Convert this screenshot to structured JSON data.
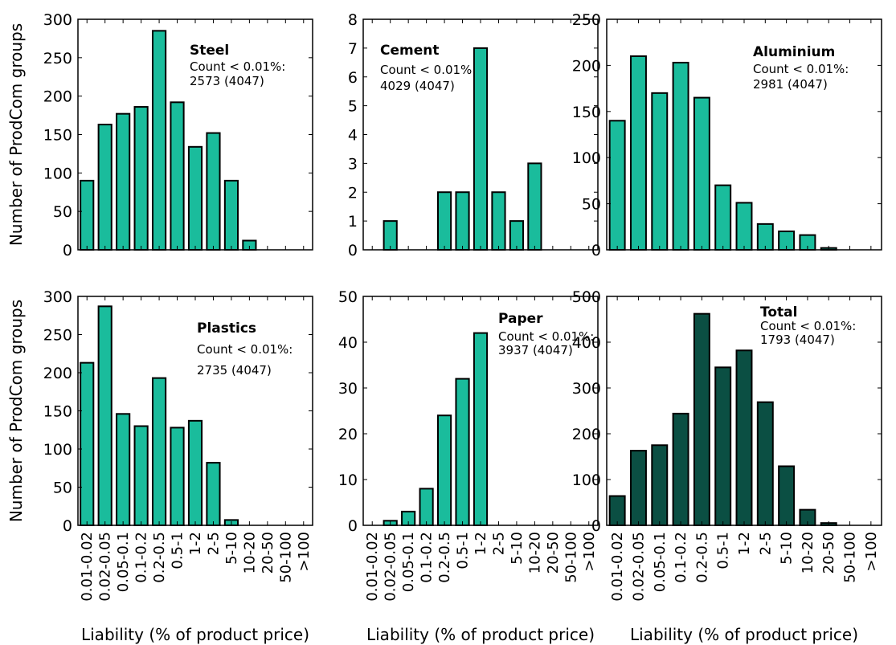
{
  "shared": {
    "categories": [
      "0.01-0.02",
      "0.02-0.05",
      "0.05-0.1",
      "0.1-0.2",
      "0.2-0.5",
      "0.5-1",
      "1-2",
      "2-5",
      "5-10",
      "10-20",
      "20-50",
      "50-100",
      ">100"
    ],
    "ylabel": "Number of ProdCom groups",
    "xlabel": "Liability (% of product price)"
  },
  "chart_data": [
    {
      "type": "bar",
      "title": "Steel",
      "annotation": [
        "Count < 0.01%:",
        "2573 (4047)"
      ],
      "color": "#1abc9c",
      "ylim": [
        0,
        300
      ],
      "yticks": [
        0,
        50,
        100,
        150,
        200,
        250,
        300
      ],
      "values": [
        90,
        163,
        177,
        186,
        285,
        192,
        134,
        152,
        90,
        12,
        0,
        0,
        0
      ]
    },
    {
      "type": "bar",
      "title": "Cement",
      "annotation": [
        "Count < 0.01%:",
        "4029 (4047)"
      ],
      "color": "#1abc9c",
      "ylim": [
        0,
        8
      ],
      "yticks": [
        0,
        1,
        2,
        3,
        4,
        5,
        6,
        7,
        8
      ],
      "values": [
        0,
        1,
        0,
        0,
        2,
        2,
        7,
        2,
        1,
        3,
        0,
        0,
        0
      ]
    },
    {
      "type": "bar",
      "title": "Aluminium",
      "annotation": [
        "Count < 0.01%:",
        "2981 (4047)"
      ],
      "color": "#1abc9c",
      "ylim": [
        0,
        250
      ],
      "yticks": [
        0,
        50,
        100,
        150,
        200,
        250
      ],
      "values": [
        140,
        210,
        170,
        203,
        165,
        70,
        51,
        28,
        20,
        16,
        2,
        0,
        0
      ]
    },
    {
      "type": "bar",
      "title": "Plastics",
      "annotation": [
        "Count < 0.01%:",
        "2735 (4047)"
      ],
      "color": "#1abc9c",
      "ylim": [
        0,
        300
      ],
      "yticks": [
        0,
        50,
        100,
        150,
        200,
        250,
        300
      ],
      "values": [
        213,
        287,
        146,
        130,
        193,
        128,
        137,
        82,
        7,
        0,
        0,
        0,
        0
      ]
    },
    {
      "type": "bar",
      "title": "Paper",
      "annotation": [
        "Count < 0.01%:",
        "3937 (4047)"
      ],
      "color": "#1abc9c",
      "ylim": [
        0,
        50
      ],
      "yticks": [
        0,
        10,
        20,
        30,
        40,
        50
      ],
      "values": [
        0,
        1,
        3,
        8,
        24,
        32,
        42,
        0,
        0,
        0,
        0,
        0,
        0
      ]
    },
    {
      "type": "bar",
      "title": "Total",
      "annotation": [
        "Count < 0.01%:",
        "1793 (4047)"
      ],
      "color": "#0b4f43",
      "ylim": [
        0,
        500
      ],
      "yticks": [
        0,
        100,
        200,
        300,
        400,
        500
      ],
      "values": [
        64,
        163,
        175,
        244,
        462,
        345,
        382,
        269,
        129,
        34,
        5,
        0,
        0
      ]
    }
  ]
}
